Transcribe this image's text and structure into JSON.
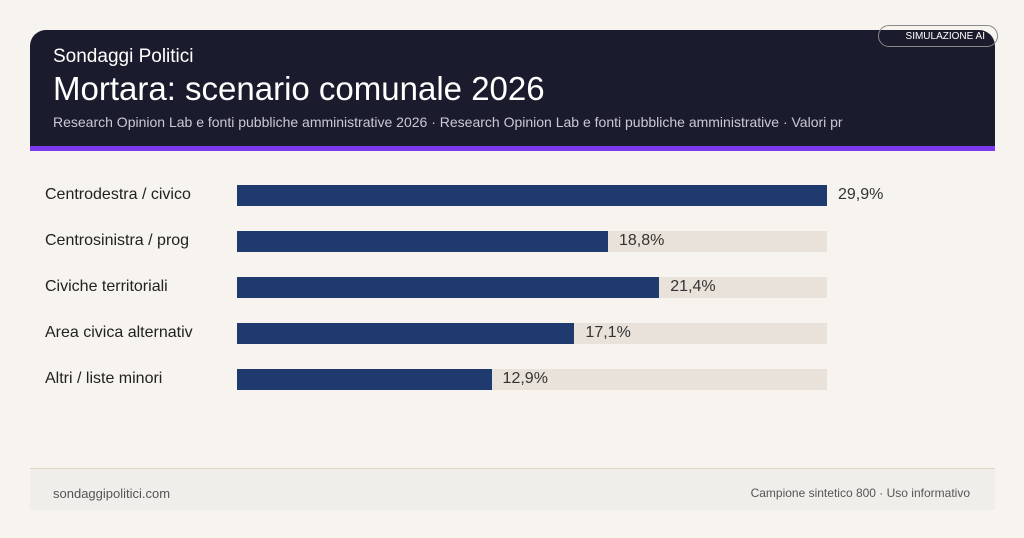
{
  "header": {
    "brand": "Sondaggi Politici",
    "title": "Mortara: scenario comunale 2026",
    "subtitle": "Research Opinion Lab e fonti pubbliche amministrative 2026 · Research Opinion Lab e fonti pubbliche amministrative · Valori pr",
    "badge": "SIMULAZIONE AI"
  },
  "colors": {
    "header_bg": "#1b1b2e",
    "accent": "#7c3aed",
    "bar": "#1e3a6e",
    "track": "#e8e2db"
  },
  "chart_data": {
    "type": "bar",
    "orientation": "horizontal",
    "categories": [
      "Centrodestra / civico",
      "Centrosinistra / prog",
      "Civiche territoriali",
      "Area civica alternativ",
      "Altri / liste minori"
    ],
    "values": [
      29.9,
      18.8,
      21.4,
      17.1,
      12.9
    ],
    "value_labels": [
      "29,9%",
      "18,8%",
      "21,4%",
      "17,1%",
      "12,9%"
    ],
    "unit": "%",
    "xlim": [
      0,
      29.9
    ],
    "grid": false
  },
  "footer": {
    "left": "sondaggipolitici.com",
    "right": "Campione sintetico 800 · Uso informativo"
  }
}
